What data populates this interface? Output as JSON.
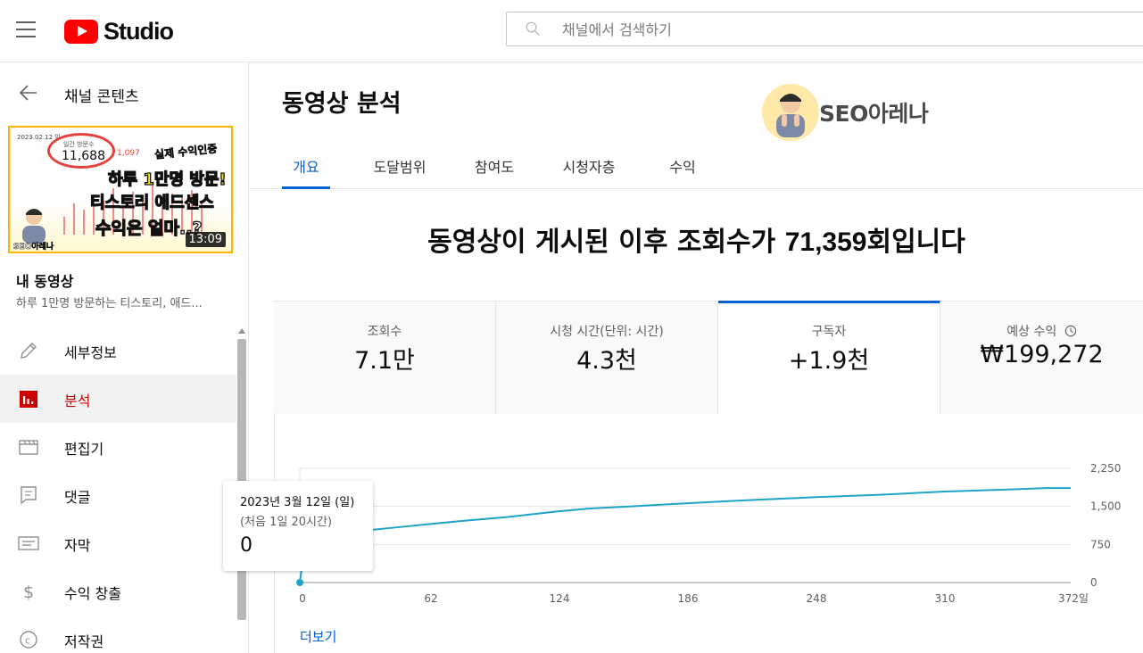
{
  "app": {
    "logo_text": "Studio"
  },
  "search": {
    "placeholder": "채널에서 검색하기"
  },
  "sidebar": {
    "back_label": "채널 콘텐츠",
    "thumbnail": {
      "date": "2023.02.12 일",
      "circle_small": "일간 방문수",
      "circle_big": "11,688",
      "red_number": "1,097",
      "tag": "실제 수익인증",
      "line1": "하루 1만명 방문!",
      "line2": "티스토리 애드센스",
      "line3": "수익은 얼마..?",
      "brand": "SEO아레나",
      "duration": "13:09"
    },
    "my_video_label": "내 동영상",
    "video_title": "하루 1만명 방문하는 티스토리, 애드...",
    "items": [
      {
        "label": "세부정보",
        "icon": "pencil-icon",
        "active": false
      },
      {
        "label": "분석",
        "icon": "analytics-icon",
        "active": true
      },
      {
        "label": "편집기",
        "icon": "clapper-icon",
        "active": false
      },
      {
        "label": "댓글",
        "icon": "comment-icon",
        "active": false
      },
      {
        "label": "자막",
        "icon": "subtitles-icon",
        "active": false
      },
      {
        "label": "수익 창출",
        "icon": "dollar-icon",
        "active": false
      },
      {
        "label": "저작권",
        "icon": "copyright-icon",
        "active": false
      }
    ]
  },
  "main": {
    "title": "동영상 분석",
    "brand_name": "SEO아레나",
    "tabs": [
      {
        "label": "개요",
        "active": true
      },
      {
        "label": "도달범위",
        "active": false
      },
      {
        "label": "참여도",
        "active": false
      },
      {
        "label": "시청자층",
        "active": false
      },
      {
        "label": "수익",
        "active": false
      }
    ],
    "headline_prefix": "동영상이 게시된 이후 조회수가 ",
    "headline_number": "71,359",
    "headline_suffix": "회입니다",
    "metrics": [
      {
        "label": "조회수",
        "value": "7.1만",
        "selected": false
      },
      {
        "label": "시청 시간(단위: 시간)",
        "value": "4.3천",
        "selected": false
      },
      {
        "label": "구독자",
        "value": "+1.9천",
        "selected": true
      },
      {
        "label": "예상 수익",
        "value": "₩199,272",
        "selected": false
      }
    ],
    "more_label": "더보기"
  },
  "tooltip": {
    "date": "2023년 3월 12일 (일)",
    "sub": "(처음 1일 20시간)",
    "value": "0"
  },
  "colors": {
    "accent": "#065fd4",
    "line": "#1ea4c4",
    "active_red": "#cc0000",
    "brand_red": "#ff0000"
  },
  "chart_data": {
    "type": "line",
    "x_ticks": [
      "0",
      "62",
      "124",
      "186",
      "248",
      "310",
      "372일"
    ],
    "y_ticks": [
      "0",
      "750",
      "1,500",
      "2,250"
    ],
    "xlim": [
      0,
      372
    ],
    "ylim": [
      0,
      2250
    ],
    "grid": true,
    "series": [
      {
        "x": [
          0,
          1,
          2,
          3,
          6,
          10,
          20,
          30,
          45,
          62,
          80,
          100,
          124,
          140,
          160,
          186,
          210,
          248,
          280,
          310,
          340,
          360,
          372
        ],
        "y": [
          0,
          300,
          500,
          760,
          880,
          930,
          980,
          1020,
          1080,
          1150,
          1220,
          1290,
          1400,
          1460,
          1500,
          1560,
          1610,
          1680,
          1730,
          1790,
          1830,
          1860,
          1860
        ]
      }
    ]
  }
}
